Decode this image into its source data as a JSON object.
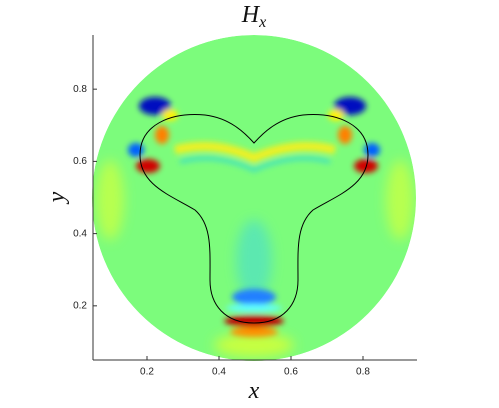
{
  "chart_data": {
    "type": "field",
    "title": "H",
    "title_subscript": "x",
    "x_label": "x",
    "y_label": "y",
    "xlim": [
      0.05,
      0.95
    ],
    "ylim": [
      0.05,
      0.95
    ],
    "xticks": [
      0.2,
      0.4,
      0.6,
      0.8
    ],
    "yticks": [
      0.2,
      0.4,
      0.6,
      0.8
    ]
  }
}
